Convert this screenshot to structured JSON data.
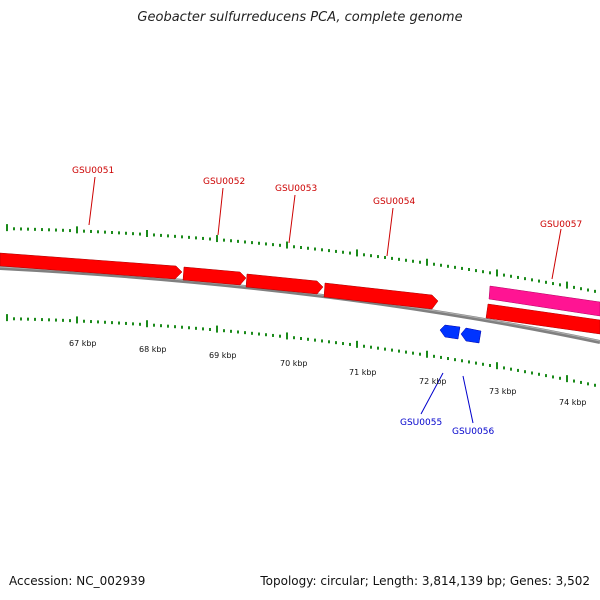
{
  "title": "Geobacter sulfurreducens PCA, complete genome",
  "footer": {
    "accession": "Accession: NC_002939",
    "topology": "Topology: circular; Length: 3,814,139 bp; Genes: 3,502"
  },
  "colors": {
    "forward_gene": "#ff0000",
    "reverse_gene": "#0033ff",
    "rna_gene": "#ff1493",
    "forward_label": "#cc0000",
    "reverse_label": "#0000cc",
    "backbone": "#808080",
    "tick": "#1a8a1a"
  },
  "scale_labels": [
    "67 kbp",
    "68 kbp",
    "69 kbp",
    "70 kbp",
    "71 kbp",
    "72 kbp",
    "73 kbp",
    "74 kbp"
  ],
  "genes_forward": [
    {
      "label": ""
    },
    {
      "label": "GSU0051"
    },
    {
      "label": "GSU0052"
    },
    {
      "label": "GSU0053"
    },
    {
      "label": "GSU0054"
    }
  ],
  "genes_reverse": [
    {
      "label": "GSU0055"
    },
    {
      "label": "GSU0056"
    }
  ],
  "gene_rna": {
    "label": "GSU0057"
  },
  "gene_reverse_right": {
    "label": ""
  }
}
